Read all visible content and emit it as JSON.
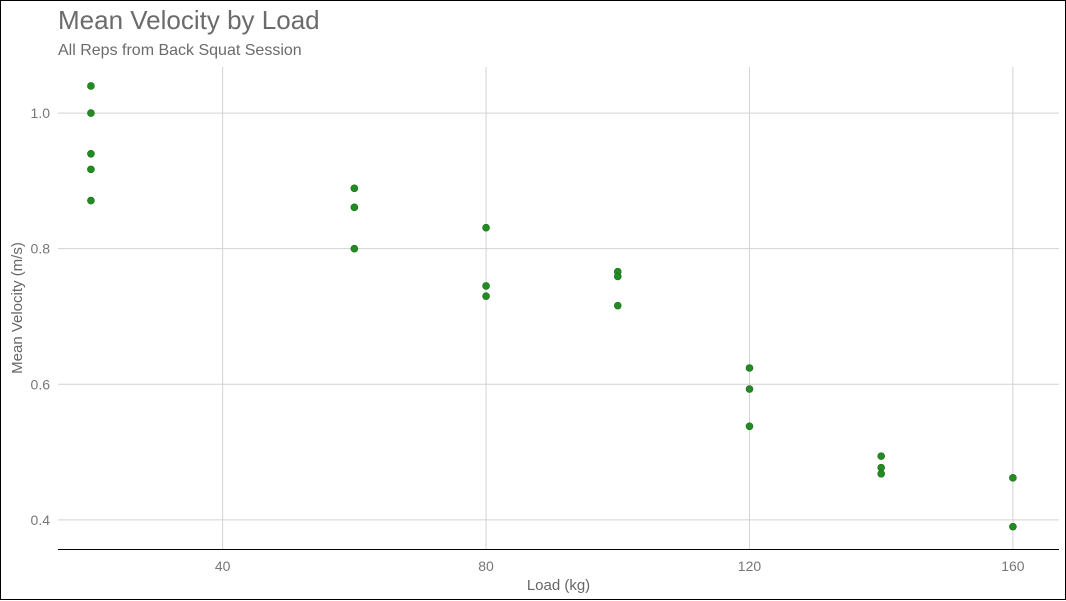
{
  "chart_data": {
    "type": "scatter",
    "title": "Mean Velocity by Load",
    "subtitle": "All Reps from Back Squat Session",
    "xlabel": "Load (kg)",
    "ylabel": "Mean Velocity (m/s)",
    "xlim": [
      15,
      167
    ],
    "ylim": [
      0.357,
      1.068
    ],
    "xticks": [
      40,
      80,
      120,
      160
    ],
    "yticks": [
      0.4,
      0.6,
      0.8,
      1.0
    ],
    "xtick_labels": [
      "40",
      "80",
      "120",
      "160"
    ],
    "ytick_labels": [
      "0.4",
      "0.6",
      "0.8",
      "1.0"
    ],
    "grid": true,
    "point_color": "#228b22",
    "points": [
      {
        "x": 20,
        "y": 1.04
      },
      {
        "x": 20,
        "y": 1.0
      },
      {
        "x": 20,
        "y": 0.94
      },
      {
        "x": 20,
        "y": 0.917
      },
      {
        "x": 20,
        "y": 0.871
      },
      {
        "x": 60,
        "y": 0.889
      },
      {
        "x": 60,
        "y": 0.861
      },
      {
        "x": 60,
        "y": 0.8
      },
      {
        "x": 80,
        "y": 0.831
      },
      {
        "x": 80,
        "y": 0.745
      },
      {
        "x": 80,
        "y": 0.73
      },
      {
        "x": 100,
        "y": 0.766
      },
      {
        "x": 100,
        "y": 0.759
      },
      {
        "x": 100,
        "y": 0.716
      },
      {
        "x": 120,
        "y": 0.624
      },
      {
        "x": 120,
        "y": 0.593
      },
      {
        "x": 120,
        "y": 0.538
      },
      {
        "x": 140,
        "y": 0.494
      },
      {
        "x": 140,
        "y": 0.477
      },
      {
        "x": 140,
        "y": 0.468
      },
      {
        "x": 160,
        "y": 0.462
      },
      {
        "x": 160,
        "y": 0.39
      }
    ]
  }
}
